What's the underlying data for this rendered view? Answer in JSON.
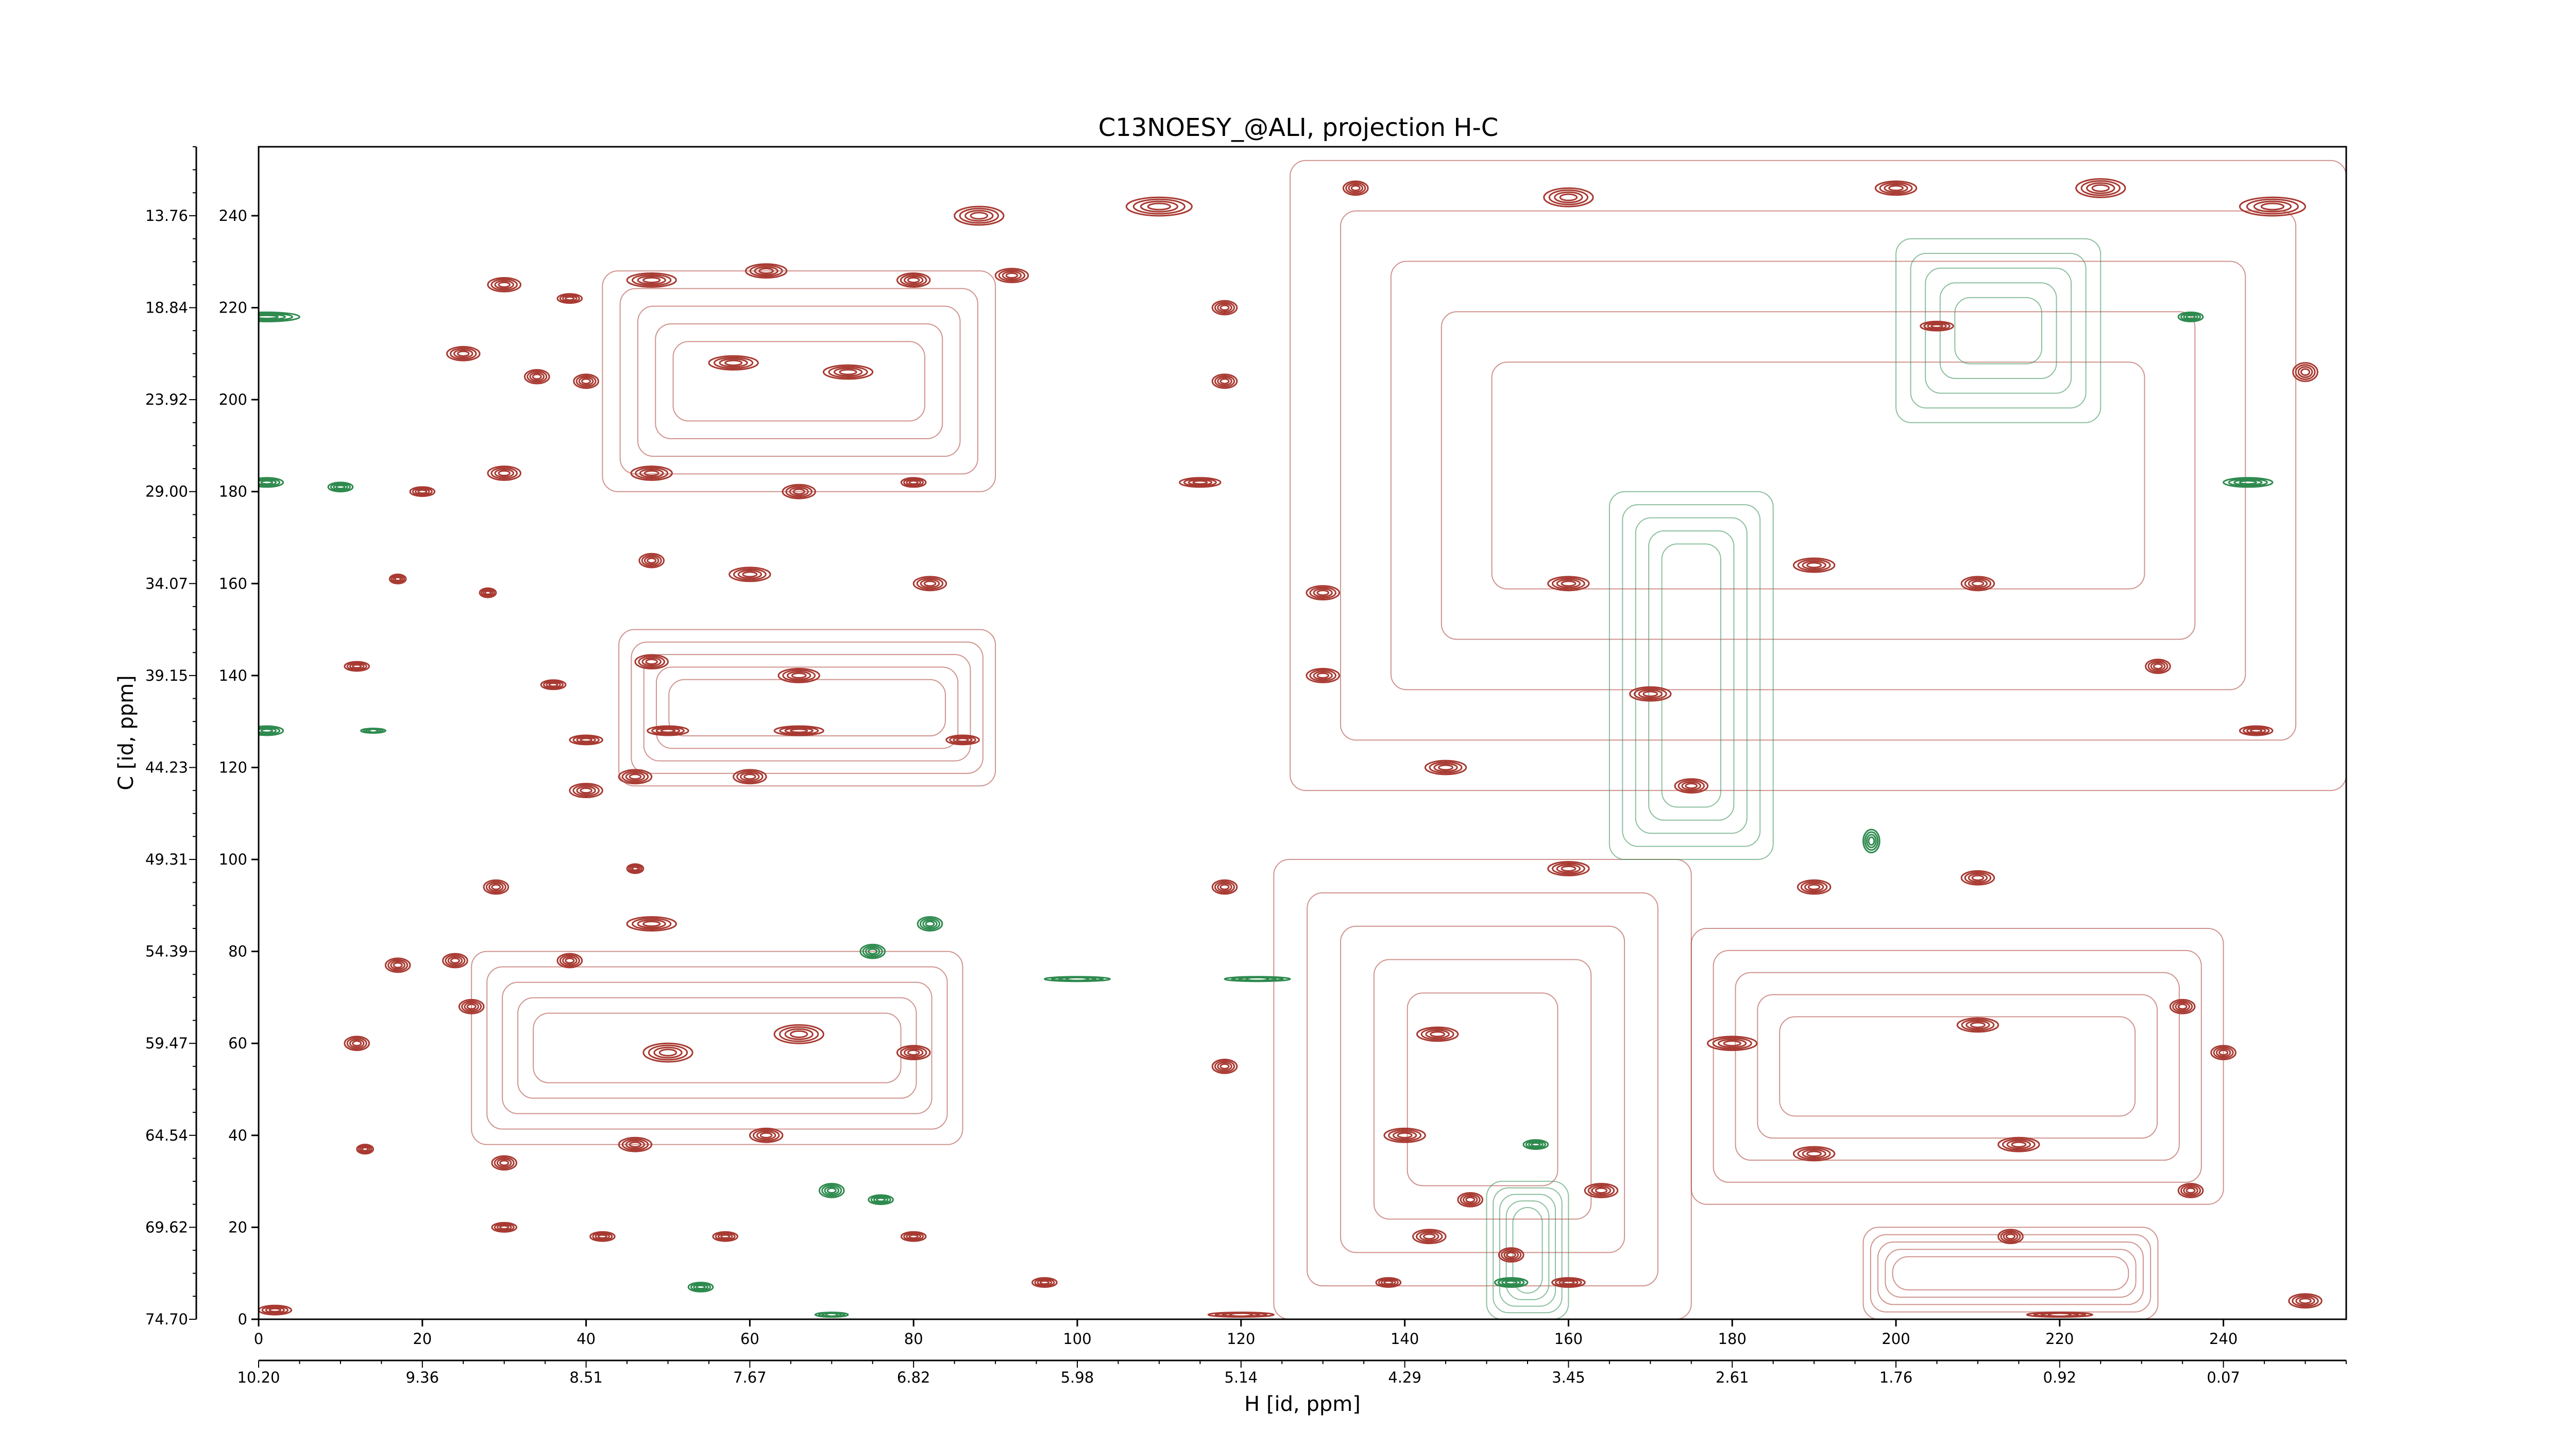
{
  "chart_data": {
    "type": "contour",
    "title": "C13NOESY_@ALI, projection H-C",
    "xlabel": "H [id, ppm]",
    "ylabel": "C [id, ppm]",
    "x_index_ticks": [
      "0",
      "20",
      "40",
      "60",
      "80",
      "100",
      "120",
      "140",
      "160",
      "180",
      "200",
      "220",
      "240"
    ],
    "x_ppm_ticks": [
      "10.20",
      "9.36",
      "8.51",
      "7.67",
      "6.82",
      "5.98",
      "5.14",
      "4.29",
      "3.45",
      "2.61",
      "1.76",
      "0.92",
      "0.07"
    ],
    "y_index_ticks": [
      "0",
      "20",
      "40",
      "60",
      "80",
      "100",
      "120",
      "140",
      "160",
      "180",
      "200",
      "220",
      "240"
    ],
    "y_ppm_ticks": [
      "74.70",
      "69.62",
      "64.54",
      "59.47",
      "54.39",
      "49.31",
      "44.23",
      "39.15",
      "34.07",
      "29.00",
      "23.92",
      "18.84",
      "13.76"
    ],
    "xlim": [
      0,
      255
    ],
    "ylim": [
      0,
      255
    ],
    "colors": {
      "positive": "#a83a32",
      "negative": "#2e8a4e"
    },
    "peaks": [
      {
        "x": 88,
        "y": 240,
        "sign": "pos",
        "w": 6,
        "h": 4
      },
      {
        "x": 110,
        "y": 242,
        "sign": "pos",
        "w": 8,
        "h": 4
      },
      {
        "x": 134,
        "y": 246,
        "sign": "pos",
        "w": 3,
        "h": 3
      },
      {
        "x": 160,
        "y": 244,
        "sign": "pos",
        "w": 6,
        "h": 4
      },
      {
        "x": 200,
        "y": 246,
        "sign": "pos",
        "w": 5,
        "h": 3
      },
      {
        "x": 225,
        "y": 246,
        "sign": "pos",
        "w": 6,
        "h": 4
      },
      {
        "x": 246,
        "y": 242,
        "sign": "pos",
        "w": 8,
        "h": 4
      },
      {
        "x": 30,
        "y": 225,
        "sign": "pos",
        "w": 4,
        "h": 3
      },
      {
        "x": 38,
        "y": 222,
        "sign": "pos",
        "w": 3,
        "h": 2
      },
      {
        "x": 48,
        "y": 226,
        "sign": "pos",
        "w": 6,
        "h": 3
      },
      {
        "x": 62,
        "y": 228,
        "sign": "pos",
        "w": 5,
        "h": 3
      },
      {
        "x": 80,
        "y": 226,
        "sign": "pos",
        "w": 4,
        "h": 3
      },
      {
        "x": 92,
        "y": 227,
        "sign": "pos",
        "w": 4,
        "h": 3
      },
      {
        "x": 118,
        "y": 220,
        "sign": "pos",
        "w": 3,
        "h": 3
      },
      {
        "x": 205,
        "y": 216,
        "sign": "pos",
        "w": 4,
        "h": 2
      },
      {
        "x": 1,
        "y": 218,
        "sign": "neg",
        "w": 8,
        "h": 2
      },
      {
        "x": 236,
        "y": 218,
        "sign": "neg",
        "w": 3,
        "h": 2
      },
      {
        "x": 25,
        "y": 210,
        "sign": "pos",
        "w": 4,
        "h": 3
      },
      {
        "x": 34,
        "y": 205,
        "sign": "pos",
        "w": 3,
        "h": 3
      },
      {
        "x": 40,
        "y": 204,
        "sign": "pos",
        "w": 3,
        "h": 3
      },
      {
        "x": 58,
        "y": 208,
        "sign": "pos",
        "w": 6,
        "h": 3
      },
      {
        "x": 72,
        "y": 206,
        "sign": "pos",
        "w": 6,
        "h": 3
      },
      {
        "x": 118,
        "y": 204,
        "sign": "pos",
        "w": 3,
        "h": 3
      },
      {
        "x": 250,
        "y": 206,
        "sign": "pos",
        "w": 3,
        "h": 4
      },
      {
        "x": 1,
        "y": 182,
        "sign": "neg",
        "w": 4,
        "h": 2
      },
      {
        "x": 10,
        "y": 181,
        "sign": "neg",
        "w": 3,
        "h": 2
      },
      {
        "x": 20,
        "y": 180,
        "sign": "pos",
        "w": 3,
        "h": 2
      },
      {
        "x": 30,
        "y": 184,
        "sign": "pos",
        "w": 4,
        "h": 3
      },
      {
        "x": 48,
        "y": 184,
        "sign": "pos",
        "w": 5,
        "h": 3
      },
      {
        "x": 66,
        "y": 180,
        "sign": "pos",
        "w": 4,
        "h": 3
      },
      {
        "x": 80,
        "y": 182,
        "sign": "pos",
        "w": 3,
        "h": 2
      },
      {
        "x": 115,
        "y": 182,
        "sign": "pos",
        "w": 5,
        "h": 2
      },
      {
        "x": 243,
        "y": 182,
        "sign": "neg",
        "w": 6,
        "h": 2
      },
      {
        "x": 17,
        "y": 161,
        "sign": "pos",
        "w": 2,
        "h": 2
      },
      {
        "x": 28,
        "y": 158,
        "sign": "pos",
        "w": 2,
        "h": 2
      },
      {
        "x": 48,
        "y": 165,
        "sign": "pos",
        "w": 3,
        "h": 3
      },
      {
        "x": 60,
        "y": 162,
        "sign": "pos",
        "w": 5,
        "h": 3
      },
      {
        "x": 82,
        "y": 160,
        "sign": "pos",
        "w": 4,
        "h": 3
      },
      {
        "x": 130,
        "y": 158,
        "sign": "pos",
        "w": 4,
        "h": 3
      },
      {
        "x": 160,
        "y": 160,
        "sign": "pos",
        "w": 5,
        "h": 3
      },
      {
        "x": 190,
        "y": 164,
        "sign": "pos",
        "w": 5,
        "h": 3
      },
      {
        "x": 210,
        "y": 160,
        "sign": "pos",
        "w": 4,
        "h": 3
      },
      {
        "x": 12,
        "y": 142,
        "sign": "pos",
        "w": 3,
        "h": 2
      },
      {
        "x": 36,
        "y": 138,
        "sign": "pos",
        "w": 3,
        "h": 2
      },
      {
        "x": 48,
        "y": 143,
        "sign": "pos",
        "w": 4,
        "h": 3
      },
      {
        "x": 66,
        "y": 140,
        "sign": "pos",
        "w": 5,
        "h": 3
      },
      {
        "x": 130,
        "y": 140,
        "sign": "pos",
        "w": 4,
        "h": 3
      },
      {
        "x": 170,
        "y": 136,
        "sign": "pos",
        "w": 5,
        "h": 3
      },
      {
        "x": 232,
        "y": 142,
        "sign": "pos",
        "w": 3,
        "h": 3
      },
      {
        "x": 1,
        "y": 128,
        "sign": "neg",
        "w": 4,
        "h": 2
      },
      {
        "x": 14,
        "y": 128,
        "sign": "neg",
        "w": 3,
        "h": 1
      },
      {
        "x": 40,
        "y": 126,
        "sign": "pos",
        "w": 4,
        "h": 2
      },
      {
        "x": 50,
        "y": 128,
        "sign": "pos",
        "w": 5,
        "h": 2
      },
      {
        "x": 66,
        "y": 128,
        "sign": "pos",
        "w": 6,
        "h": 2
      },
      {
        "x": 86,
        "y": 126,
        "sign": "pos",
        "w": 4,
        "h": 2
      },
      {
        "x": 244,
        "y": 128,
        "sign": "pos",
        "w": 4,
        "h": 2
      },
      {
        "x": 40,
        "y": 115,
        "sign": "pos",
        "w": 4,
        "h": 3
      },
      {
        "x": 46,
        "y": 118,
        "sign": "pos",
        "w": 4,
        "h": 3
      },
      {
        "x": 60,
        "y": 118,
        "sign": "pos",
        "w": 4,
        "h": 3
      },
      {
        "x": 145,
        "y": 120,
        "sign": "pos",
        "w": 5,
        "h": 3
      },
      {
        "x": 175,
        "y": 116,
        "sign": "pos",
        "w": 4,
        "h": 3
      },
      {
        "x": 197,
        "y": 104,
        "sign": "neg",
        "w": 2,
        "h": 5
      },
      {
        "x": 29,
        "y": 94,
        "sign": "pos",
        "w": 3,
        "h": 3
      },
      {
        "x": 46,
        "y": 98,
        "sign": "pos",
        "w": 2,
        "h": 2
      },
      {
        "x": 118,
        "y": 94,
        "sign": "pos",
        "w": 3,
        "h": 3
      },
      {
        "x": 160,
        "y": 98,
        "sign": "pos",
        "w": 5,
        "h": 3
      },
      {
        "x": 190,
        "y": 94,
        "sign": "pos",
        "w": 4,
        "h": 3
      },
      {
        "x": 210,
        "y": 96,
        "sign": "pos",
        "w": 4,
        "h": 3
      },
      {
        "x": 17,
        "y": 77,
        "sign": "pos",
        "w": 3,
        "h": 3
      },
      {
        "x": 24,
        "y": 78,
        "sign": "pos",
        "w": 3,
        "h": 3
      },
      {
        "x": 38,
        "y": 78,
        "sign": "pos",
        "w": 3,
        "h": 3
      },
      {
        "x": 48,
        "y": 86,
        "sign": "pos",
        "w": 6,
        "h": 3
      },
      {
        "x": 75,
        "y": 80,
        "sign": "neg",
        "w": 3,
        "h": 3
      },
      {
        "x": 82,
        "y": 86,
        "sign": "neg",
        "w": 3,
        "h": 3
      },
      {
        "x": 100,
        "y": 74,
        "sign": "neg",
        "w": 8,
        "h": 1
      },
      {
        "x": 122,
        "y": 74,
        "sign": "neg",
        "w": 8,
        "h": 1
      },
      {
        "x": 12,
        "y": 60,
        "sign": "pos",
        "w": 3,
        "h": 3
      },
      {
        "x": 26,
        "y": 68,
        "sign": "pos",
        "w": 3,
        "h": 3
      },
      {
        "x": 50,
        "y": 58,
        "sign": "pos",
        "w": 6,
        "h": 4
      },
      {
        "x": 66,
        "y": 62,
        "sign": "pos",
        "w": 6,
        "h": 4
      },
      {
        "x": 80,
        "y": 58,
        "sign": "pos",
        "w": 4,
        "h": 3
      },
      {
        "x": 118,
        "y": 55,
        "sign": "pos",
        "w": 3,
        "h": 3
      },
      {
        "x": 144,
        "y": 62,
        "sign": "pos",
        "w": 5,
        "h": 3
      },
      {
        "x": 180,
        "y": 60,
        "sign": "pos",
        "w": 6,
        "h": 3
      },
      {
        "x": 210,
        "y": 64,
        "sign": "pos",
        "w": 5,
        "h": 3
      },
      {
        "x": 235,
        "y": 68,
        "sign": "pos",
        "w": 3,
        "h": 3
      },
      {
        "x": 240,
        "y": 58,
        "sign": "pos",
        "w": 3,
        "h": 3
      },
      {
        "x": 13,
        "y": 37,
        "sign": "pos",
        "w": 2,
        "h": 2
      },
      {
        "x": 30,
        "y": 34,
        "sign": "pos",
        "w": 3,
        "h": 3
      },
      {
        "x": 46,
        "y": 38,
        "sign": "pos",
        "w": 4,
        "h": 3
      },
      {
        "x": 62,
        "y": 40,
        "sign": "pos",
        "w": 4,
        "h": 3
      },
      {
        "x": 70,
        "y": 28,
        "sign": "neg",
        "w": 3,
        "h": 3
      },
      {
        "x": 76,
        "y": 26,
        "sign": "neg",
        "w": 3,
        "h": 2
      },
      {
        "x": 140,
        "y": 40,
        "sign": "pos",
        "w": 5,
        "h": 3
      },
      {
        "x": 156,
        "y": 38,
        "sign": "neg",
        "w": 3,
        "h": 2
      },
      {
        "x": 164,
        "y": 28,
        "sign": "pos",
        "w": 4,
        "h": 3
      },
      {
        "x": 190,
        "y": 36,
        "sign": "pos",
        "w": 5,
        "h": 3
      },
      {
        "x": 215,
        "y": 38,
        "sign": "pos",
        "w": 5,
        "h": 3
      },
      {
        "x": 236,
        "y": 28,
        "sign": "pos",
        "w": 3,
        "h": 3
      },
      {
        "x": 148,
        "y": 26,
        "sign": "pos",
        "w": 3,
        "h": 3
      },
      {
        "x": 30,
        "y": 20,
        "sign": "pos",
        "w": 3,
        "h": 2
      },
      {
        "x": 42,
        "y": 18,
        "sign": "pos",
        "w": 3,
        "h": 2
      },
      {
        "x": 57,
        "y": 18,
        "sign": "pos",
        "w": 3,
        "h": 2
      },
      {
        "x": 80,
        "y": 18,
        "sign": "pos",
        "w": 3,
        "h": 2
      },
      {
        "x": 143,
        "y": 18,
        "sign": "pos",
        "w": 4,
        "h": 3
      },
      {
        "x": 153,
        "y": 14,
        "sign": "pos",
        "w": 3,
        "h": 3
      },
      {
        "x": 214,
        "y": 18,
        "sign": "pos",
        "w": 3,
        "h": 3
      },
      {
        "x": 54,
        "y": 7,
        "sign": "neg",
        "w": 3,
        "h": 2
      },
      {
        "x": 96,
        "y": 8,
        "sign": "pos",
        "w": 3,
        "h": 2
      },
      {
        "x": 138,
        "y": 8,
        "sign": "pos",
        "w": 3,
        "h": 2
      },
      {
        "x": 153,
        "y": 8,
        "sign": "neg",
        "w": 4,
        "h": 2
      },
      {
        "x": 160,
        "y": 8,
        "sign": "pos",
        "w": 4,
        "h": 2
      },
      {
        "x": 250,
        "y": 4,
        "sign": "pos",
        "w": 4,
        "h": 3
      },
      {
        "x": 2,
        "y": 2,
        "sign": "pos",
        "w": 4,
        "h": 2
      },
      {
        "x": 70,
        "y": 1,
        "sign": "neg",
        "w": 4,
        "h": 1
      },
      {
        "x": 120,
        "y": 1,
        "sign": "pos",
        "w": 8,
        "h": 1
      },
      {
        "x": 220,
        "y": 1,
        "sign": "pos",
        "w": 8,
        "h": 1
      }
    ],
    "bands": [
      {
        "x0": 42,
        "x1": 90,
        "y0": 180,
        "y1": 228,
        "sign": "pos"
      },
      {
        "x0": 44,
        "x1": 90,
        "y0": 116,
        "y1": 150,
        "sign": "pos"
      },
      {
        "x0": 26,
        "x1": 86,
        "y0": 38,
        "y1": 80,
        "sign": "pos"
      },
      {
        "x0": 126,
        "x1": 255,
        "y0": 115,
        "y1": 252,
        "sign": "pos"
      },
      {
        "x0": 124,
        "x1": 175,
        "y0": 0,
        "y1": 100,
        "sign": "pos"
      },
      {
        "x0": 175,
        "x1": 240,
        "y0": 25,
        "y1": 85,
        "sign": "pos"
      },
      {
        "x0": 165,
        "x1": 185,
        "y0": 100,
        "y1": 180,
        "sign": "neg"
      },
      {
        "x0": 150,
        "x1": 160,
        "y0": 0,
        "y1": 30,
        "sign": "neg"
      },
      {
        "x0": 196,
        "x1": 232,
        "y0": 0,
        "y1": 20,
        "sign": "pos"
      },
      {
        "x0": 200,
        "x1": 225,
        "y0": 195,
        "y1": 235,
        "sign": "neg"
      }
    ]
  }
}
